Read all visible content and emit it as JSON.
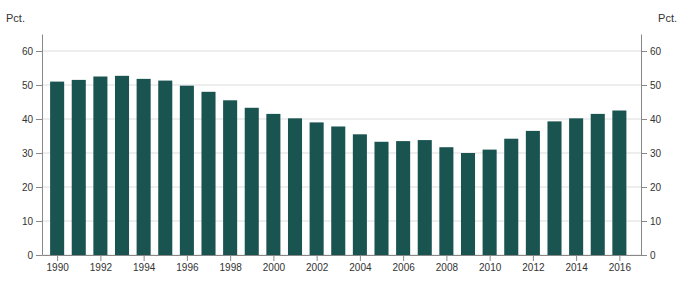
{
  "chart_data": {
    "type": "bar",
    "x": [
      1990,
      1991,
      1992,
      1993,
      1994,
      1995,
      1996,
      1997,
      1998,
      1999,
      2000,
      2001,
      2002,
      2003,
      2004,
      2005,
      2006,
      2007,
      2008,
      2009,
      2010,
      2011,
      2012,
      2013,
      2014,
      2015,
      2016
    ],
    "values": [
      51.0,
      51.5,
      52.5,
      52.7,
      51.8,
      51.3,
      49.8,
      48.0,
      45.5,
      43.3,
      41.5,
      40.2,
      39.0,
      37.8,
      35.5,
      33.3,
      33.5,
      33.8,
      31.7,
      30.0,
      31.0,
      34.2,
      36.5,
      39.3,
      40.2,
      41.5,
      42.5
    ],
    "color": "#1a5451",
    "xlim": [
      1989.3,
      2017.0
    ],
    "xticks": [
      1990,
      1992,
      1994,
      1996,
      1998,
      2000,
      2002,
      2004,
      2006,
      2008,
      2010,
      2012,
      2014,
      2016
    ],
    "ylim": [
      0,
      65
    ],
    "yticks": [
      0,
      10,
      20,
      30,
      40,
      50,
      60
    ],
    "y2lim": [
      0,
      65
    ],
    "y2ticks": [
      0,
      10,
      20,
      30,
      40,
      50,
      60
    ],
    "ylabel": "Pct.",
    "y2label": "Pct.",
    "grid": true
  }
}
